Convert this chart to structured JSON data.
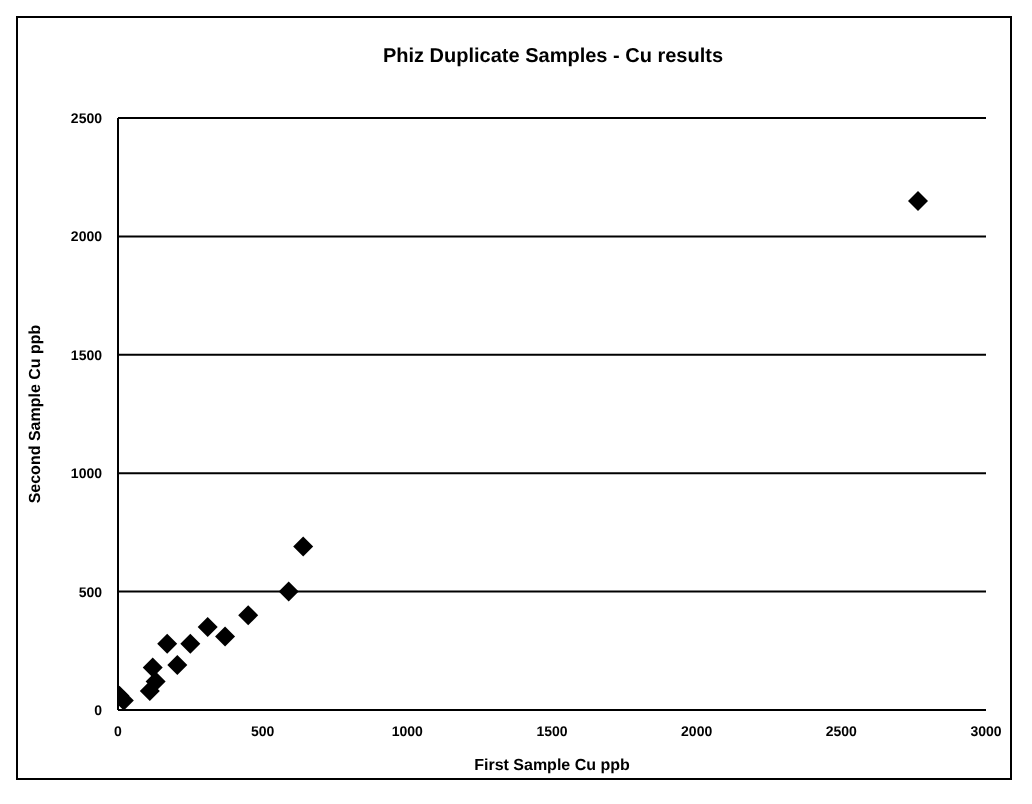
{
  "chart_data": {
    "type": "scatter",
    "title": "Phiz Duplicate Samples - Cu results",
    "xlabel": "First Sample Cu ppb",
    "ylabel": "Second Sample Cu ppb",
    "x": [
      5,
      20,
      110,
      130,
      120,
      170,
      205,
      250,
      310,
      370,
      450,
      590,
      640,
      2765
    ],
    "series": [
      {
        "color": "#000000",
        "values": [
          60,
          40,
          80,
          120,
          180,
          280,
          190,
          280,
          350,
          310,
          400,
          500,
          690,
          2150
        ]
      }
    ],
    "xlim": [
      0,
      3000
    ],
    "xticks": [
      0,
      500,
      1000,
      1500,
      2000,
      2500,
      3000
    ],
    "ylim": [
      0,
      2500
    ],
    "yticks": [
      0,
      500,
      1000,
      1500,
      2000,
      2500
    ],
    "grid": "y",
    "legend": false,
    "marker": "diamond"
  }
}
